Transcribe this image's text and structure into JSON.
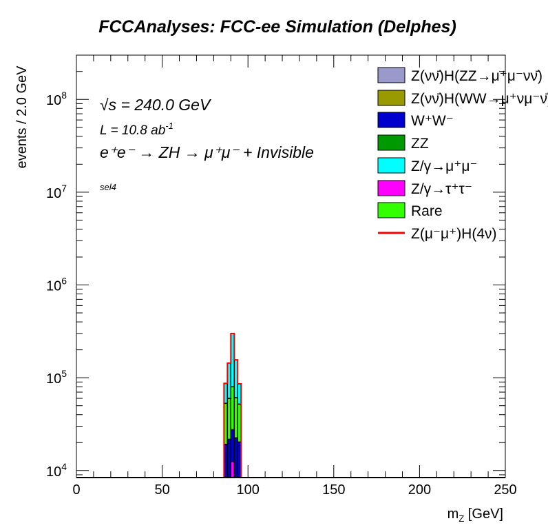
{
  "chart_data": {
    "type": "bar",
    "stacked": true,
    "title": "FCCAnalyses: FCC-ee Simulation (Delphes)",
    "xlabel": "m_Z [GeV]",
    "ylabel": "events / 2.0 GeV",
    "xlim": [
      0,
      250
    ],
    "ylim": [
      8400,
      300000000
    ],
    "yscale": "log",
    "x_ticks": [
      "0",
      "50",
      "100",
      "150",
      "200",
      "250"
    ],
    "y_ticks": [
      "10^4",
      "10^5",
      "10^6",
      "10^7",
      "10^8"
    ],
    "bin_edges": [
      86,
      88,
      90,
      92,
      94,
      96
    ],
    "annotations": [
      "√s = 240.0 GeV",
      "L = 10.8 ab",
      "e⁺e⁻ → ZH → μ⁺μ⁻ + Invisible",
      "sel4"
    ],
    "lumi_exp": "-1",
    "series": [
      {
        "name": "Z(νν̄)H(ZZ→μ⁺μ⁻νν̄)",
        "color": "#9999cc",
        "values": [
          0,
          0,
          0,
          0,
          0
        ]
      },
      {
        "name": "Z(νν̄)H(WW→μ⁺νμ⁻ν̄)",
        "color": "#999900",
        "values": [
          0,
          0,
          0,
          0,
          0
        ]
      },
      {
        "name": "ZZ",
        "color": "#009900",
        "values": [
          0,
          0,
          300,
          0,
          0
        ]
      },
      {
        "name": "Z/γ→τ⁺τ⁻",
        "color": "#ff00ff",
        "values": [
          0,
          0,
          12200,
          0,
          0
        ]
      },
      {
        "name": "W⁺W⁻",
        "color": "#0000cc",
        "values": [
          19200,
          21700,
          15100,
          22500,
          20300
        ]
      },
      {
        "name": "Rare",
        "color": "#33ff00",
        "values": [
          33800,
          38300,
          52400,
          38500,
          31700
        ]
      },
      {
        "name": "Z/γ→μ⁺μ⁻",
        "color": "#00ffff",
        "values": [
          34000,
          84000,
          220000,
          95000,
          34000
        ]
      }
    ],
    "signal": {
      "name": "Z(μ⁻μ⁺)H(4ν)",
      "color": "#ff0000",
      "style": "line"
    },
    "legend": [
      "Z(νν̄)H(ZZ→μ⁺μ⁻νν̄)",
      "Z(νν̄)H(WW→μ⁺νμ⁻ν̄)",
      "W⁺W⁻",
      "ZZ",
      "Z/γ→μ⁺μ⁻",
      "Z/γ→τ⁺τ⁻",
      "Rare",
      "Z(μ⁻μ⁺)H(4ν)"
    ],
    "legend_colors": [
      "#9999cc",
      "#999900",
      "#0000cc",
      "#009900",
      "#00ffff",
      "#ff00ff",
      "#33ff00",
      "#ff0000"
    ],
    "legend_placement": "top-right",
    "grid": false
  }
}
